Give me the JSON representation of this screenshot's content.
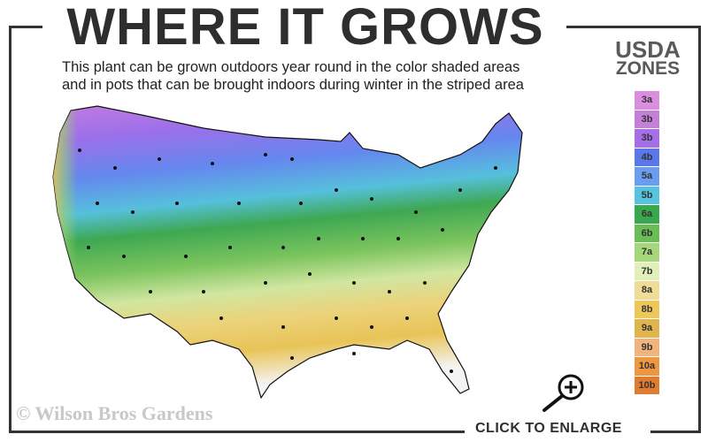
{
  "title": "WHERE IT GROWS",
  "subtitle": [
    "This plant can be grown outdoors year round in the color shaded areas",
    "and in pots that can be brought indoors during winter in the striped area"
  ],
  "legend": {
    "title_line1": "USDA",
    "title_line2": "ZONES",
    "zones": [
      {
        "label": "3a",
        "color": "#d98ee0"
      },
      {
        "label": "3b",
        "color": "#c47fd8"
      },
      {
        "label": "3b",
        "color": "#a66ee8"
      },
      {
        "label": "4b",
        "color": "#5c78e8"
      },
      {
        "label": "5a",
        "color": "#6a9cf0"
      },
      {
        "label": "5b",
        "color": "#56c4e0"
      },
      {
        "label": "6a",
        "color": "#38a84e"
      },
      {
        "label": "6b",
        "color": "#68bd55"
      },
      {
        "label": "7a",
        "color": "#a6d67a"
      },
      {
        "label": "7b",
        "color": "#e2efb8"
      },
      {
        "label": "8a",
        "color": "#f0dc96"
      },
      {
        "label": "8b",
        "color": "#ecc85a"
      },
      {
        "label": "9a",
        "color": "#e0b550"
      },
      {
        "label": "9b",
        "color": "#f2b47c"
      },
      {
        "label": "10a",
        "color": "#ee9640"
      },
      {
        "label": "10b",
        "color": "#e07c30"
      }
    ]
  },
  "copyright": "© Wilson Bros Gardens",
  "enlarge_label": "CLICK TO ENLARGE",
  "icons": {
    "enlarge": "magnifier-plus-icon"
  }
}
